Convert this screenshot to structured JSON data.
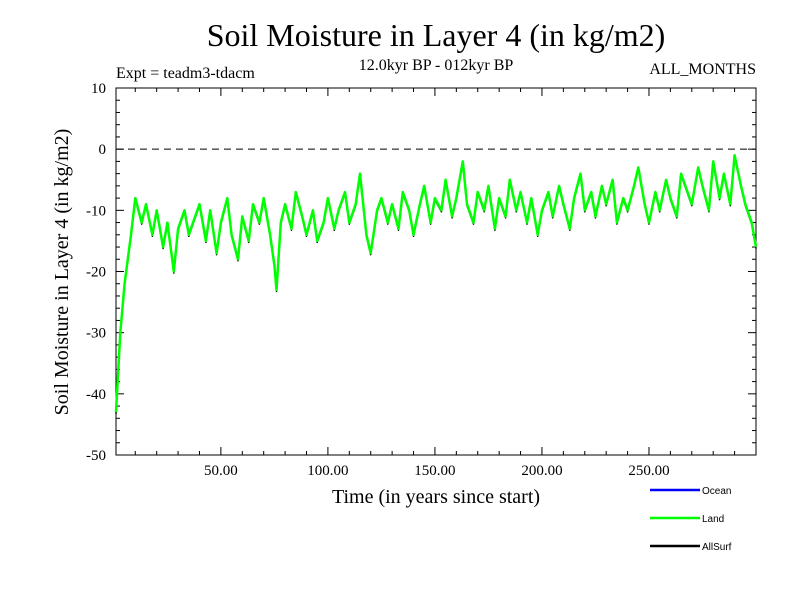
{
  "chart_data": {
    "type": "line",
    "title": "Soil Moisture in Layer 4 (in kg/m2)",
    "subtitle_left": "Expt = teadm3-tdacm",
    "subtitle_center": "12.0kyr BP - 012kyr BP",
    "subtitle_right": "ALL_MONTHS",
    "xlabel": "Time (in years since start)",
    "ylabel": "Soil Moisture in Layer 4 (in kg/m2)",
    "xlim": [
      1,
      300
    ],
    "ylim": [
      -50,
      10
    ],
    "x_ticks": [
      50,
      100,
      150,
      200,
      250
    ],
    "x_tick_labels": [
      "50.00",
      "100.00",
      "150.00",
      "200.00",
      "250.00"
    ],
    "y_ticks": [
      10,
      0,
      -10,
      -20,
      -30,
      -40,
      -50
    ],
    "y_tick_labels": [
      "10",
      "0",
      "-10",
      "-20",
      "-30",
      "-40",
      "-50"
    ],
    "reference_line": 0,
    "legend_position": "bottom-right",
    "series": [
      {
        "name": "Ocean",
        "color": "#0000ff",
        "values": []
      },
      {
        "name": "Land",
        "color": "#00ff00",
        "x": [
          1,
          3,
          5,
          8,
          10,
          13,
          15,
          18,
          20,
          23,
          25,
          28,
          30,
          33,
          35,
          38,
          40,
          43,
          45,
          48,
          50,
          53,
          55,
          58,
          60,
          63,
          65,
          68,
          70,
          73,
          75,
          76,
          78,
          80,
          83,
          85,
          88,
          90,
          93,
          95,
          98,
          100,
          103,
          105,
          108,
          110,
          113,
          115,
          118,
          120,
          123,
          125,
          128,
          130,
          133,
          135,
          138,
          140,
          143,
          145,
          148,
          150,
          153,
          155,
          158,
          160,
          163,
          165,
          168,
          170,
          173,
          175,
          178,
          180,
          183,
          185,
          188,
          190,
          193,
          195,
          198,
          200,
          203,
          205,
          208,
          210,
          213,
          215,
          218,
          220,
          223,
          225,
          228,
          230,
          233,
          235,
          238,
          240,
          243,
          245,
          248,
          250,
          253,
          255,
          258,
          260,
          263,
          265,
          268,
          270,
          273,
          275,
          278,
          280,
          283,
          285,
          288,
          290,
          293,
          295,
          298,
          300
        ],
        "values": [
          -43,
          -30,
          -22,
          -14,
          -8,
          -12,
          -9,
          -14,
          -10,
          -16,
          -12,
          -20,
          -13,
          -10,
          -14,
          -11,
          -9,
          -15,
          -10,
          -17,
          -12,
          -8,
          -14,
          -18,
          -11,
          -15,
          -9,
          -12,
          -8,
          -14,
          -19,
          -23,
          -12,
          -9,
          -13,
          -7,
          -11,
          -14,
          -10,
          -15,
          -12,
          -8,
          -13,
          -10,
          -7,
          -12,
          -9,
          -4,
          -14,
          -17,
          -10,
          -8,
          -12,
          -9,
          -13,
          -7,
          -10,
          -14,
          -9,
          -6,
          -12,
          -8,
          -10,
          -5,
          -11,
          -8,
          -2,
          -9,
          -12,
          -7,
          -10,
          -6,
          -13,
          -8,
          -11,
          -5,
          -10,
          -7,
          -12,
          -8,
          -14,
          -10,
          -7,
          -11,
          -6,
          -9,
          -13,
          -8,
          -4,
          -10,
          -7,
          -11,
          -6,
          -9,
          -5,
          -12,
          -8,
          -10,
          -6,
          -3,
          -9,
          -12,
          -7,
          -10,
          -5,
          -8,
          -11,
          -4,
          -7,
          -9,
          -3,
          -6,
          -10,
          -2,
          -8,
          -4,
          -9,
          -1,
          -6,
          -9,
          -12,
          -16
        ]
      },
      {
        "name": "AllSurf",
        "color": "#000000",
        "values": []
      }
    ]
  }
}
